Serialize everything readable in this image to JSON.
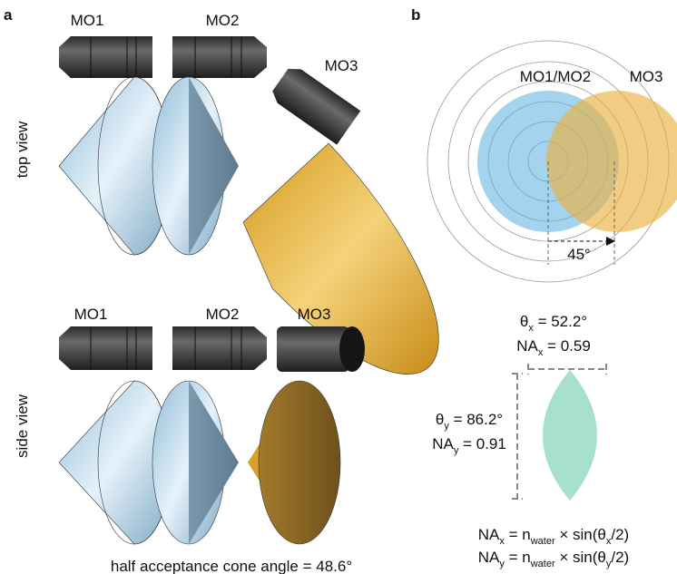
{
  "panel_a": {
    "label": "a",
    "top_view": {
      "label": "top view",
      "objectives": [
        "MO1",
        "MO2",
        "MO3"
      ]
    },
    "side_view": {
      "label": "side view",
      "objectives": [
        "MO1",
        "MO2",
        "MO3"
      ]
    },
    "caption": "half acceptance cone angle = 48.6°"
  },
  "panel_b": {
    "label": "b",
    "circle_labels": [
      "MO1/MO2",
      "MO3"
    ],
    "angle_label": "45°",
    "theta_x": {
      "base": "θ",
      "sub": "x",
      "rest": " = 52.2°"
    },
    "na_x": {
      "base": "NA",
      "sub": "x",
      "rest": " = 0.59"
    },
    "theta_y": {
      "base": "θ",
      "sub": "y",
      "rest": " = 86.2°"
    },
    "na_y": {
      "base": "NA",
      "sub": "y",
      "rest": " = 0.91"
    },
    "formula_x": {
      "lhs": "NA",
      "lhs_sub": "x",
      "mid": " = n",
      "n_sub": "water",
      "rhs": " × sin(θ",
      "theta_sub": "x",
      "end": "/2)"
    },
    "formula_y": {
      "lhs": "NA",
      "lhs_sub": "y",
      "mid": " = n",
      "n_sub": "water",
      "rhs": " × sin(θ",
      "theta_sub": "y",
      "end": "/2)"
    }
  }
}
